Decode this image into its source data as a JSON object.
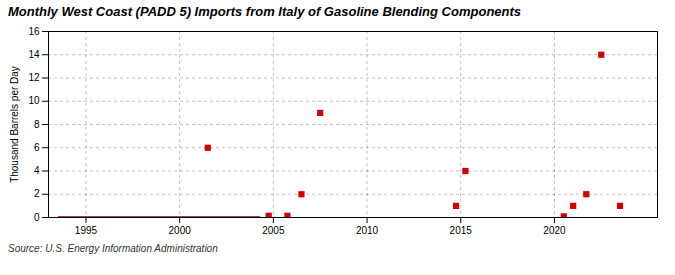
{
  "chart_data": {
    "type": "scatter",
    "title": "Monthly West Coast (PADD 5) Imports from Italy of Gasoline Blending Components",
    "ylabel": "Thousand Barrels per Day",
    "source": "Source: U.S. Energy Information Administration",
    "xlim": [
      1993.0,
      2025.5
    ],
    "ylim": [
      0,
      16
    ],
    "xticks": [
      1995,
      2000,
      2005,
      2010,
      2015,
      2020
    ],
    "yticks": [
      0,
      2,
      4,
      6,
      8,
      10,
      12,
      14,
      16
    ],
    "grid": true,
    "series": [
      {
        "type": "line",
        "color": "#8b0000",
        "line_style": "solid",
        "x": [
          1993.5,
          2004.3
        ],
        "values": [
          0,
          0
        ]
      },
      {
        "type": "scatter",
        "color": "#cc0000",
        "marker": "square",
        "x": [
          2001.5,
          2004.75,
          2005.75,
          2006.5,
          2007.5,
          2014.75,
          2015.25,
          2020.5,
          2021.0,
          2021.7,
          2022.5,
          2023.5
        ],
        "values": [
          6.0,
          0.15,
          0.15,
          2.0,
          9.0,
          1.0,
          4.0,
          0.1,
          1.0,
          2.0,
          14.0,
          1.0
        ]
      }
    ]
  }
}
